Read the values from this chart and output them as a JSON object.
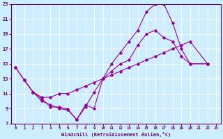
{
  "xlabel": "Windchill (Refroidissement éolien,°C)",
  "background_color": "#cceeff",
  "grid_color": "#ffffff",
  "line_color": "#990099",
  "xlim": [
    -0.5,
    23.5
  ],
  "ylim": [
    7,
    23
  ],
  "xticks": [
    0,
    1,
    2,
    3,
    4,
    5,
    6,
    7,
    8,
    9,
    10,
    11,
    12,
    13,
    14,
    15,
    16,
    17,
    18,
    19,
    20,
    21,
    22,
    23
  ],
  "yticks": [
    7,
    9,
    11,
    13,
    15,
    17,
    19,
    21,
    23
  ],
  "line1_x": [
    0,
    1,
    2,
    3,
    4,
    5,
    6,
    7,
    8,
    9,
    10,
    11,
    12,
    13,
    14,
    15,
    16,
    17,
    18,
    19,
    20,
    22
  ],
  "line1_y": [
    14.5,
    12.8,
    11.2,
    10.0,
    9.5,
    9.0,
    8.8,
    7.5,
    9.2,
    11.2,
    13.0,
    15.0,
    16.5,
    18.0,
    19.5,
    22.0,
    23.0,
    23.0,
    20.5,
    17.0,
    15.0,
    15.0
  ],
  "line2_x": [
    1,
    2,
    3,
    4,
    5,
    6,
    7,
    8,
    9,
    10,
    11,
    12,
    13,
    14,
    15,
    16,
    17,
    18,
    19,
    20,
    22
  ],
  "line2_y": [
    12.8,
    11.2,
    10.3,
    9.2,
    9.2,
    8.9,
    7.5,
    9.5,
    9.0,
    13.0,
    14.0,
    15.0,
    15.5,
    17.5,
    19.0,
    19.5,
    18.5,
    18.0,
    16.0,
    15.0,
    15.0
  ],
  "line3_x": [
    0,
    1,
    2,
    3,
    4,
    5,
    6,
    7,
    8,
    9,
    10,
    11,
    12,
    13,
    14,
    15,
    16,
    17,
    18,
    19,
    20,
    22
  ],
  "line3_y": [
    14.5,
    12.8,
    11.2,
    10.5,
    10.5,
    11.0,
    11.0,
    11.5,
    12.0,
    12.5,
    13.0,
    13.5,
    14.0,
    14.5,
    15.0,
    15.5,
    16.0,
    16.5,
    17.0,
    17.5,
    18.0,
    15.0
  ]
}
